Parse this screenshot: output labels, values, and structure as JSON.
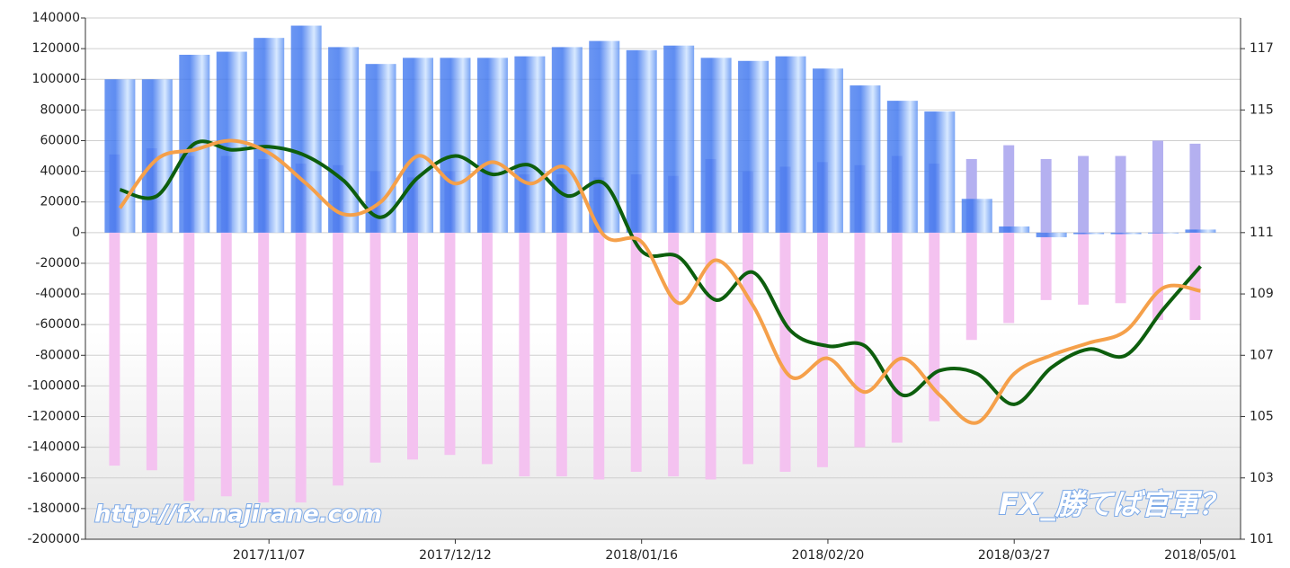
{
  "chart_data": {
    "type": "combo",
    "categories": [
      null,
      null,
      null,
      null,
      "2017/11/07",
      null,
      null,
      null,
      null,
      "2017/12/12",
      null,
      null,
      null,
      null,
      "2018/01/16",
      null,
      null,
      null,
      null,
      "2018/02/20",
      null,
      null,
      null,
      null,
      "2018/03/27",
      null,
      null,
      null,
      null,
      "2018/05/01"
    ],
    "series": [
      {
        "type": "bar",
        "color": "#f4c2f0",
        "values": [
          -152000,
          -155000,
          -175000,
          -172000,
          -176000,
          -176000,
          -165000,
          -150000,
          -148000,
          -145000,
          -151000,
          -159000,
          -159000,
          -161000,
          -156000,
          -159000,
          -161000,
          -151000,
          -156000,
          -153000,
          -140000,
          -137000,
          -123000,
          -70000,
          -59000,
          -44000,
          -47000,
          -46000,
          -57000,
          -57000
        ]
      },
      {
        "type": "bar",
        "color": "#b4b0f0",
        "values": [
          51000,
          55000,
          50000,
          50000,
          48000,
          45000,
          44000,
          40000,
          36000,
          40000,
          40000,
          38000,
          38000,
          36000,
          38000,
          37000,
          48000,
          40000,
          43000,
          46000,
          44000,
          50000,
          45000,
          48000,
          57000,
          48000,
          50000,
          50000,
          60000,
          58000
        ]
      },
      {
        "type": "bar",
        "color": "#3f7ff0",
        "values": [
          100000,
          100000,
          116000,
          118000,
          127000,
          135000,
          121000,
          110000,
          114000,
          114000,
          114000,
          115000,
          121000,
          125000,
          119000,
          122000,
          114000,
          112000,
          115000,
          107000,
          96000,
          86000,
          79000,
          22000,
          4000,
          -3000,
          -1000,
          -1000,
          -500,
          2000
        ]
      },
      {
        "type": "line",
        "axis": "y2",
        "color": "#0d5e0d",
        "values": [
          112.4,
          112.2,
          113.9,
          113.7,
          113.8,
          113.5,
          112.7,
          111.5,
          112.8,
          113.5,
          112.9,
          113.2,
          112.2,
          112.6,
          110.4,
          110.2,
          108.8,
          109.7,
          107.8,
          107.3,
          107.3,
          105.7,
          106.5,
          106.4,
          105.4,
          106.6,
          107.2,
          107.0,
          108.5,
          109.9
        ]
      },
      {
        "type": "line",
        "axis": "y2",
        "color": "#f5a04a",
        "values": [
          111.8,
          113.4,
          113.7,
          114.0,
          113.6,
          112.6,
          111.6,
          112.0,
          113.5,
          112.6,
          113.3,
          112.6,
          113.1,
          110.9,
          110.7,
          108.7,
          110.1,
          108.6,
          106.3,
          106.9,
          105.8,
          106.9,
          105.7,
          104.8,
          106.4,
          107.0,
          107.4,
          107.8,
          109.2,
          109.1
        ]
      }
    ],
    "ylim": [
      -200000,
      140000
    ],
    "yticks": [
      -200000,
      -180000,
      -160000,
      -140000,
      -120000,
      -100000,
      -80000,
      -60000,
      -40000,
      -20000,
      0,
      20000,
      40000,
      60000,
      80000,
      100000,
      120000,
      140000
    ],
    "y2lim": [
      101,
      118
    ],
    "y2ticks": [
      101,
      103,
      105,
      107,
      109,
      111,
      113,
      115,
      117
    ],
    "grid": true,
    "annotations": [
      "http://fx.najirane.com",
      "FX_勝てば官軍？"
    ]
  }
}
